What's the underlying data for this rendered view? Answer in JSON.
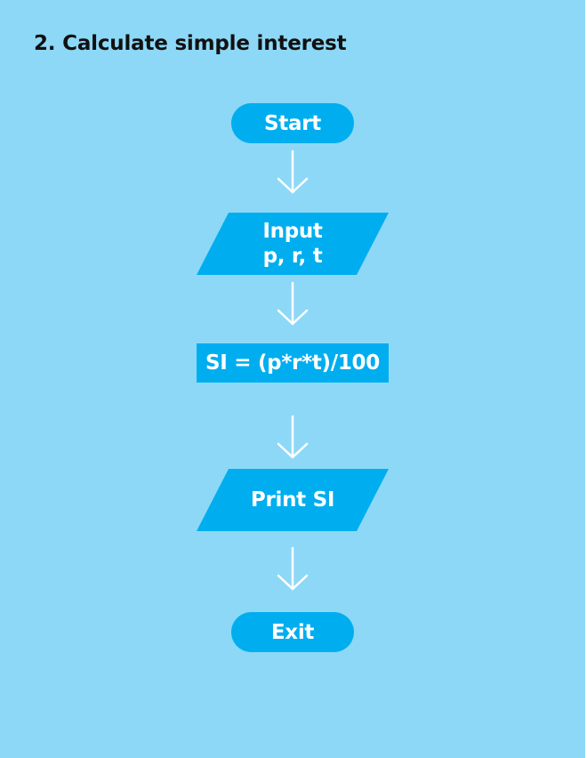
{
  "title": "2. Calculate simple interest",
  "colors": {
    "background": "#8dd8f7",
    "shape_fill": "#00aeef",
    "shape_text": "#ffffff",
    "arrow": "#ffffff",
    "title_text": "#111111"
  },
  "flowchart": {
    "nodes": [
      {
        "id": "start",
        "type": "terminal",
        "label": "Start"
      },
      {
        "id": "input",
        "type": "input-output",
        "label": "Input\np, r, t"
      },
      {
        "id": "compute",
        "type": "process",
        "label": "SI = (p*r*t)/100"
      },
      {
        "id": "print",
        "type": "input-output",
        "label": "Print SI"
      },
      {
        "id": "exit",
        "type": "terminal",
        "label": "Exit"
      }
    ],
    "edges": [
      {
        "from": "start",
        "to": "input"
      },
      {
        "from": "input",
        "to": "compute"
      },
      {
        "from": "compute",
        "to": "print"
      },
      {
        "from": "print",
        "to": "exit"
      }
    ]
  }
}
